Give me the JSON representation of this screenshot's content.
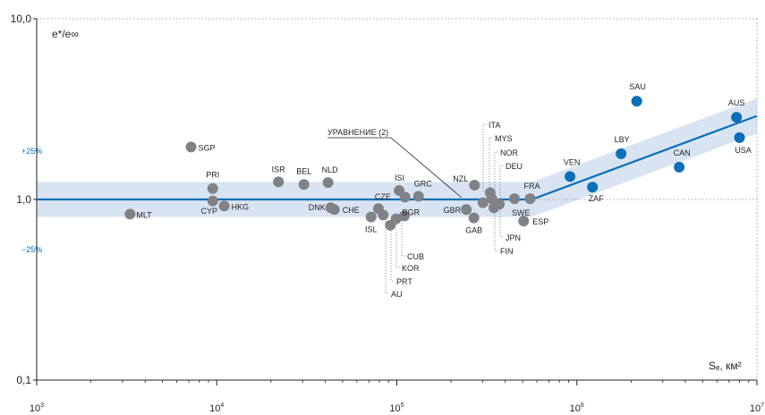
{
  "chart_data": {
    "type": "scatter",
    "title": "",
    "ylabel": "e*/e∞",
    "xlabel": "Sₑ, км²",
    "x_scale": "log",
    "y_scale": "log",
    "xlim": [
      1000,
      10000000
    ],
    "ylim": [
      0.1,
      10
    ],
    "x_ticks": [
      {
        "value": 1000,
        "base": "10",
        "exp": "3"
      },
      {
        "value": 10000,
        "base": "10",
        "exp": "4"
      },
      {
        "value": 100000,
        "base": "10",
        "exp": "5"
      },
      {
        "value": 1000000,
        "base": "10",
        "exp": "6"
      },
      {
        "value": 10000000,
        "base": "10",
        "exp": "7"
      }
    ],
    "y_ticks": [
      {
        "value": 0.1,
        "label": "0,1"
      },
      {
        "value": 1,
        "label": "1,0"
      },
      {
        "value": 10,
        "label": "10,0"
      }
    ],
    "band": {
      "plus_label": "+25%",
      "minus_label": "−25%",
      "factor": 1.25
    },
    "equation_label": "УРАВНЕНИЕ (2)",
    "trend": {
      "break_x": 562000,
      "end_x": 10000000,
      "end_y": 2.9
    },
    "colors": {
      "gray": "#808285",
      "blue": "#0a6fb8",
      "band": "#d9e4f2",
      "axis": "#231f20"
    },
    "points": [
      {
        "label": "MLT",
        "x": 3300,
        "y": 0.83,
        "color": "gray"
      },
      {
        "label": "SGP",
        "x": 7200,
        "y": 1.95,
        "color": "gray"
      },
      {
        "label": "PRI",
        "x": 9500,
        "y": 1.15,
        "color": "gray"
      },
      {
        "label": "CYP",
        "x": 9500,
        "y": 0.98,
        "color": "gray"
      },
      {
        "label": "HKG",
        "x": 11000,
        "y": 0.92,
        "color": "gray"
      },
      {
        "label": "ISR",
        "x": 22000,
        "y": 1.25,
        "color": "gray"
      },
      {
        "label": "BEL",
        "x": 30500,
        "y": 1.21,
        "color": "gray"
      },
      {
        "label": "NLD",
        "x": 41500,
        "y": 1.24,
        "color": "gray"
      },
      {
        "label": "DNK",
        "x": 43000,
        "y": 0.9,
        "color": "gray"
      },
      {
        "label": "CHE",
        "x": 45000,
        "y": 0.88,
        "color": "gray"
      },
      {
        "label": "ISL",
        "x": 72000,
        "y": 0.8,
        "color": "gray"
      },
      {
        "label": "CZE",
        "x": 79000,
        "y": 0.89,
        "color": "gray"
      },
      {
        "label": "AU",
        "x": 84000,
        "y": 0.82,
        "color": "gray"
      },
      {
        "label": "PRT",
        "x": 92000,
        "y": 0.72,
        "color": "gray"
      },
      {
        "label": "KOR",
        "x": 99000,
        "y": 0.78,
        "color": "gray"
      },
      {
        "label": "ISI",
        "x": 103000,
        "y": 1.12,
        "color": "gray"
      },
      {
        "label": "BGR",
        "x": 111000,
        "y": 1.03,
        "color": "gray"
      },
      {
        "label": "CUB",
        "x": 110000,
        "y": 0.81,
        "color": "gray"
      },
      {
        "label": "GRC",
        "x": 132000,
        "y": 1.04,
        "color": "gray"
      },
      {
        "label": "GBR",
        "x": 243000,
        "y": 0.88,
        "color": "gray"
      },
      {
        "label": "GAB",
        "x": 268000,
        "y": 0.79,
        "color": "gray"
      },
      {
        "label": "NZL",
        "x": 270000,
        "y": 1.2,
        "color": "gray"
      },
      {
        "label": "ITA",
        "x": 301000,
        "y": 0.96,
        "color": "gray"
      },
      {
        "label": "MYS",
        "x": 330000,
        "y": 1.09,
        "color": "gray"
      },
      {
        "label": "NOR",
        "x": 337000,
        "y": 1.01,
        "color": "gray"
      },
      {
        "label": "DEU",
        "x": 357000,
        "y": 0.95,
        "color": "gray"
      },
      {
        "label": "JPN",
        "x": 346000,
        "y": 0.9,
        "color": "gray"
      },
      {
        "label": "FIN",
        "x": 371000,
        "y": 0.94,
        "color": "gray"
      },
      {
        "label": "SWE",
        "x": 450000,
        "y": 1.01,
        "color": "gray"
      },
      {
        "label": "FRA",
        "x": 550000,
        "y": 1.01,
        "color": "gray"
      },
      {
        "label": "ESP",
        "x": 506000,
        "y": 0.76,
        "color": "gray"
      },
      {
        "label": "VEN",
        "x": 916000,
        "y": 1.34,
        "color": "blue"
      },
      {
        "label": "ZAF",
        "x": 1221000,
        "y": 1.17,
        "color": "blue"
      },
      {
        "label": "LBY",
        "x": 1760000,
        "y": 1.79,
        "color": "blue"
      },
      {
        "label": "SAU",
        "x": 2150000,
        "y": 3.5,
        "color": "blue"
      },
      {
        "label": "CAN",
        "x": 3700000,
        "y": 1.51,
        "color": "blue"
      },
      {
        "label": "AUS",
        "x": 7700000,
        "y": 2.85,
        "color": "blue"
      },
      {
        "label": "USA",
        "x": 8000000,
        "y": 2.2,
        "color": "blue"
      }
    ]
  }
}
